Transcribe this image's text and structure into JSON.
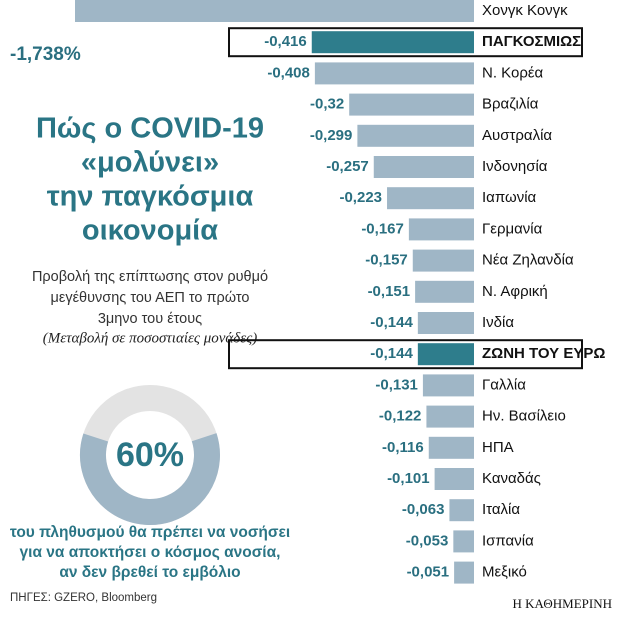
{
  "chart_data": {
    "type": "bar",
    "title": [
      "Πώς ο COVID-19",
      "«μολύνει»",
      "την παγκόσμια",
      "οικονομία"
    ],
    "subtitle": [
      "Προβολή της επίπτωσης στον ρυθμό",
      "μεγέθυνσης του ΑΕΠ το πρώτο",
      "3μηνο του έτους"
    ],
    "unit_note": "(Μεταβολή σε ποσοστιαίες μονάδες)",
    "categories": [
      "Χονγκ Κονγκ",
      "ΠΑΓΚΟΣΜΙΩΣ",
      "Ν. Κορέα",
      "Βραζιλία",
      "Αυστραλία",
      "Ινδονησία",
      "Ιαπωνία",
      "Γερμανία",
      "Νέα Ζηλανδία",
      "Ν. Αφρική",
      "Ινδία",
      "ΖΩΝΗ ΤΟΥ ΕΥΡΩ",
      "Γαλλία",
      "Ην. Βασίλειο",
      "ΗΠΑ",
      "Καναδάς",
      "Ιταλία",
      "Ισπανία",
      "Μεξικό"
    ],
    "values": [
      -1.738,
      -0.416,
      -0.408,
      -0.32,
      -0.299,
      -0.257,
      -0.223,
      -0.167,
      -0.157,
      -0.151,
      -0.144,
      -0.144,
      -0.131,
      -0.122,
      -0.116,
      -0.101,
      -0.063,
      -0.053,
      -0.051
    ],
    "value_labels": [
      "-1,738%",
      "-0,416",
      "-0,408",
      "-0,32",
      "-0,299",
      "-0,257",
      "-0,223",
      "-0,167",
      "-0,157",
      "-0,151",
      "-0,144",
      "-0,144",
      "-0,131",
      "-0,122",
      "-0,116",
      "-0,101",
      "-0,063",
      "-0,053",
      "-0,051"
    ],
    "colors": [
      "#9fb6c6",
      "#2e7d8c",
      "#9fb6c6",
      "#9fb6c6",
      "#9fb6c6",
      "#9fb6c6",
      "#9fb6c6",
      "#9fb6c6",
      "#9fb6c6",
      "#9fb6c6",
      "#9fb6c6",
      "#2e7d8c",
      "#9fb6c6",
      "#9fb6c6",
      "#9fb6c6",
      "#9fb6c6",
      "#9fb6c6",
      "#9fb6c6",
      "#9fb6c6"
    ],
    "donut": {
      "value": 60,
      "label": "60%",
      "color": "#9fb6c6",
      "rest_color": "#e3e3e3",
      "caption": [
        "του πληθυσμού θα πρέπει να νοσήσει",
        "για να αποκτήσει ο κόσμος ανοσία,",
        "αν δεν βρεθεί το εμβόλιο"
      ]
    },
    "source": "ΠΗΓΕΣ: GZERO, Bloomberg",
    "publisher": "Η ΚΑΘΗΜΕΡΙΝΗ"
  }
}
